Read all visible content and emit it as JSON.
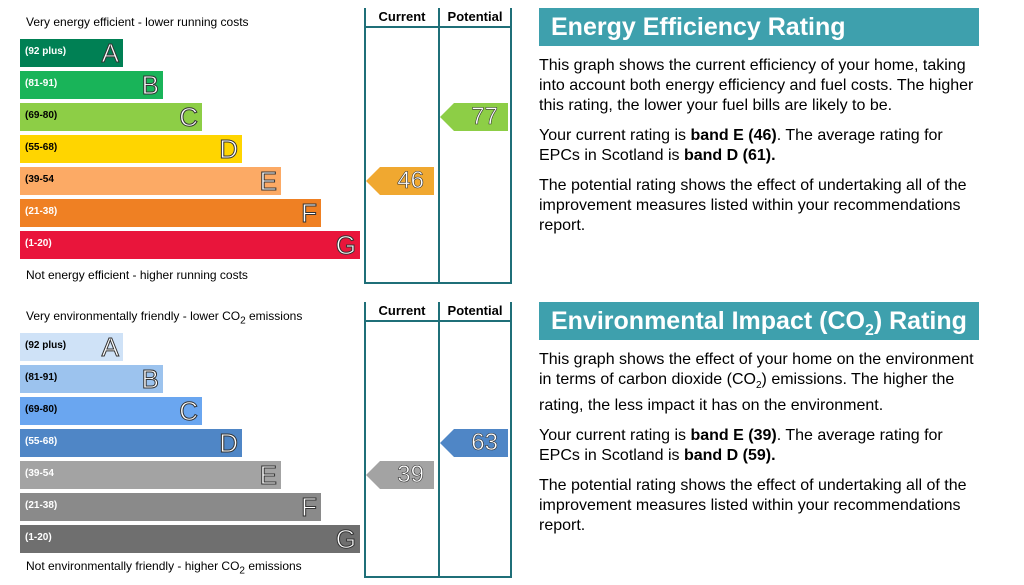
{
  "energy": {
    "header_current": "Current",
    "header_potential": "Potential",
    "top_label": "Very energy efficient - lower running costs",
    "bottom_label": "Not energy efficient - higher running costs",
    "bands": [
      {
        "range": "(92 plus)",
        "letter": "A",
        "color": "#008054"
      },
      {
        "range": "(81-91)",
        "letter": "B",
        "color": "#19b459"
      },
      {
        "range": "(69-80)",
        "letter": "C",
        "color": "#8dce46"
      },
      {
        "range": "(55-68)",
        "letter": "D",
        "color": "#ffd500"
      },
      {
        "range": "(39-54",
        "letter": "E",
        "color": "#fcaa65"
      },
      {
        "range": "(21-38)",
        "letter": "F",
        "color": "#ef8023"
      },
      {
        "range": "(1-20)",
        "letter": "G",
        "color": "#e9153b"
      }
    ],
    "current": {
      "value": "46",
      "band": "E",
      "color": "#f0a830"
    },
    "potential": {
      "value": "77",
      "band": "C",
      "color": "#8dce46"
    },
    "title": "Energy Efficiency Rating",
    "p1": "This graph shows the current efficiency of your home, taking into account both energy efficiency and fuel costs. The higher this rating, the lower your fuel bills are likely to be.",
    "p2_a": "Your current rating is ",
    "p2_b": "band E (46)",
    "p2_c": ". The average rating for EPCs in Scotland is ",
    "p2_d": "band D (61).",
    "p3": "The potential rating shows the effect of undertaking all of the improvement measures listed within your recommendations report."
  },
  "environment": {
    "header_current": "Current",
    "header_potential": "Potential",
    "top_label_a": "Very environmentally friendly - lower CO",
    "top_label_sub": "2",
    "top_label_b": " emissions",
    "bottom_label_a": "Not environmentally friendly - higher CO",
    "bottom_label_sub": "2",
    "bottom_label_b": " emissions",
    "bands": [
      {
        "range": "(92 plus)",
        "letter": "A",
        "color": "#cfe2f7"
      },
      {
        "range": "(81-91)",
        "letter": "B",
        "color": "#9cc3ee"
      },
      {
        "range": "(69-80)",
        "letter": "C",
        "color": "#6aa6f0"
      },
      {
        "range": "(55-68)",
        "letter": "D",
        "color": "#4f86c6"
      },
      {
        "range": "(39-54",
        "letter": "E",
        "color": "#a3a3a3"
      },
      {
        "range": "(21-38)",
        "letter": "F",
        "color": "#8a8a8a"
      },
      {
        "range": "(1-20)",
        "letter": "G",
        "color": "#6f6f6f"
      }
    ],
    "current": {
      "value": "39",
      "band": "E",
      "color": "#a3a3a3"
    },
    "potential": {
      "value": "63",
      "band": "D",
      "color": "#4f86c6"
    },
    "title_a": "Environmental Impact (CO",
    "title_sub": "2",
    "title_b": ") Rating",
    "p1_a": "This graph shows the effect of your home on the environment in terms of carbon dioxide (CO",
    "p1_sub": "2",
    "p1_b": ") emissions. The higher the rating, the less impact it has on the environment.",
    "p2_a": "Your current rating is ",
    "p2_b": "band E (39)",
    "p2_c": ". The average rating for EPCs in Scotland is ",
    "p2_d": "band D (59).",
    "p3": "The potential rating shows the effect of undertaking all of the improvement measures listed within your recommendations report."
  }
}
